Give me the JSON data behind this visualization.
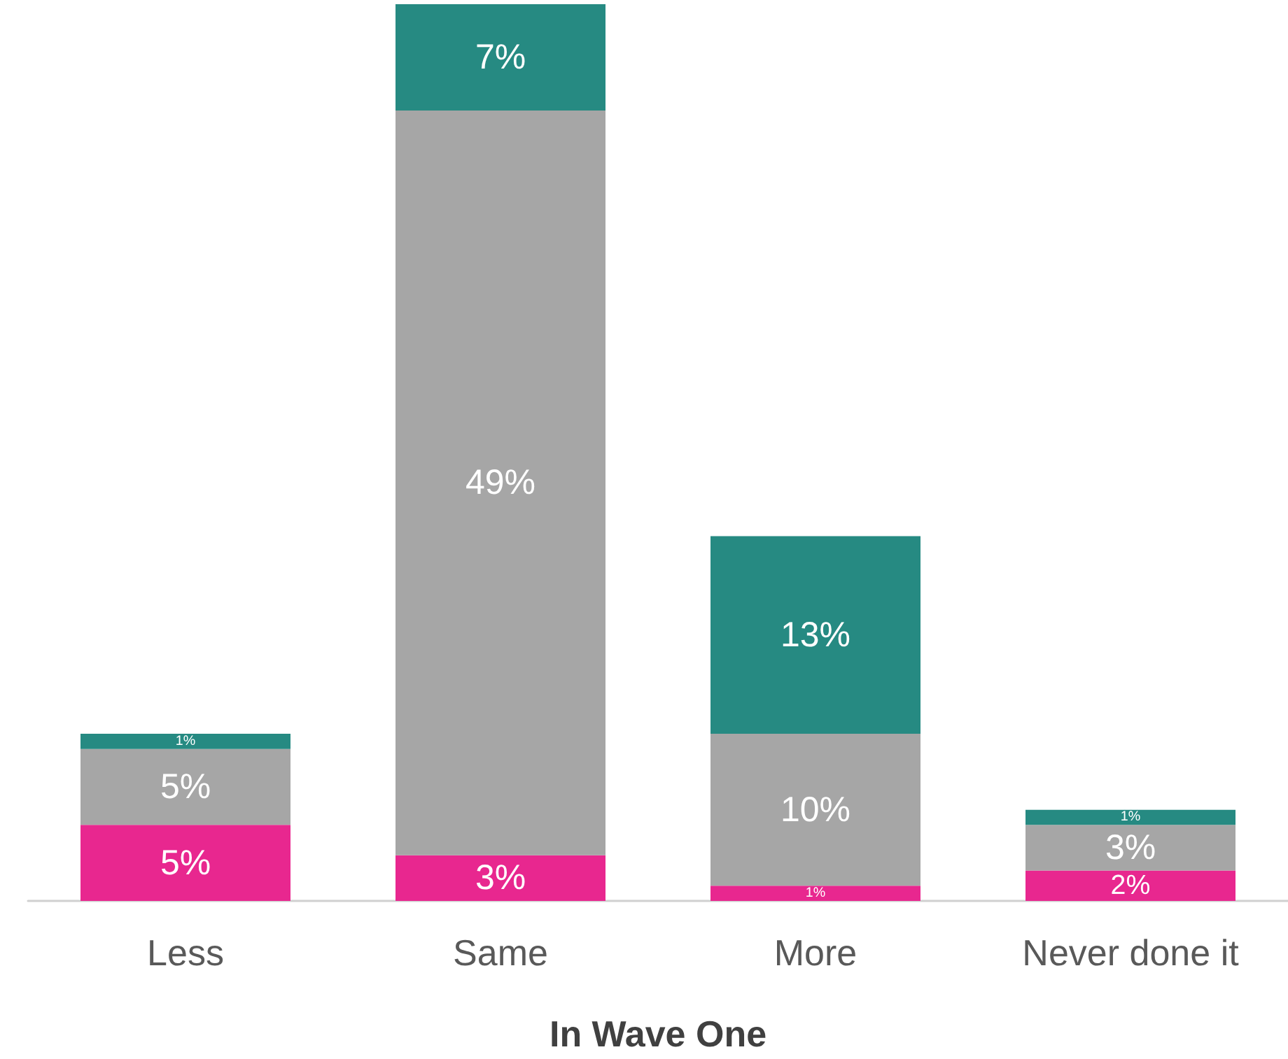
{
  "chart_data": {
    "type": "bar",
    "stacked": true,
    "xlabel": "In Wave One",
    "categories": [
      "Less",
      "Same",
      "More",
      "Never done it"
    ],
    "series": [
      {
        "color": "#e8278f",
        "values": [
          5,
          3,
          1,
          2
        ],
        "value_labels": [
          "5%",
          "3%",
          "1%",
          "2%"
        ]
      },
      {
        "color": "#a6a6a6",
        "values": [
          5,
          49,
          10,
          3
        ],
        "value_labels": [
          "5%",
          "49%",
          "10%",
          "3%"
        ]
      },
      {
        "color": "#268a82",
        "values": [
          1,
          7,
          13,
          1
        ],
        "value_labels": [
          "1%",
          "7%",
          "13%",
          "1%"
        ]
      }
    ]
  }
}
